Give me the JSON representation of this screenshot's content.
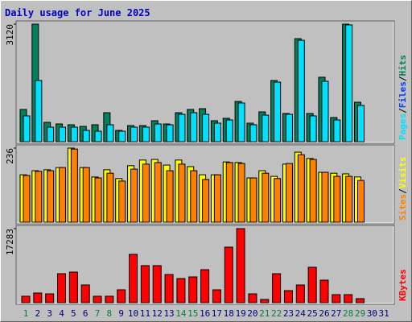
{
  "chart_data": [
    {
      "type": "bar",
      "title": "Daily usage for June 2025",
      "ylim": [
        0,
        3120
      ],
      "yticks": [
        3120
      ],
      "separator": "/",
      "series": [
        {
          "name": "Hits",
          "color": "#00805c",
          "values": [
            855,
            3120,
            513,
            470,
            449,
            406,
            449,
            769,
            300,
            427,
            427,
            556,
            470,
            769,
            855,
            876,
            556,
            620,
            1068,
            491,
            791,
            1624,
            748,
            2735,
            748,
            1710,
            641,
            3120,
            1047,
            0,
            0
          ]
        },
        {
          "name": "Files",
          "color": "#0040ff",
          "values": [
            null,
            null,
            null,
            null,
            null,
            null,
            null,
            null,
            null,
            null,
            null,
            null,
            null,
            null,
            null,
            null,
            null,
            null,
            null,
            null,
            null,
            null,
            null,
            null,
            null,
            null,
            null,
            null,
            null,
            null,
            null
          ]
        },
        {
          "name": "Pages",
          "color": "#00e0ff",
          "values": [
            684,
            1624,
            385,
            385,
            385,
            300,
            278,
            449,
            278,
            385,
            385,
            470,
            449,
            727,
            769,
            727,
            491,
            577,
            1026,
            449,
            705,
            1581,
            727,
            2692,
            684,
            1603,
            577,
            3100,
            962,
            0,
            0
          ]
        }
      ]
    },
    {
      "type": "bar",
      "ylim": [
        0,
        236
      ],
      "yticks": [
        236
      ],
      "separator": "/",
      "series": [
        {
          "name": "Visits",
          "color": "#ffff00",
          "values": [
            151,
            164,
            167,
            174,
            236,
            174,
            144,
            167,
            139,
            180,
            198,
            200,
            182,
            198,
            177,
            151,
            151,
            192,
            190,
            141,
            164,
            146,
            185,
            223,
            203,
            159,
            156,
            154,
            144,
            0,
            0
          ]
        },
        {
          "name": "Sites",
          "color": "#ff8000",
          "values": [
            149,
            162,
            164,
            174,
            233,
            174,
            141,
            156,
            131,
            169,
            185,
            190,
            164,
            185,
            164,
            136,
            151,
            190,
            187,
            141,
            156,
            139,
            187,
            215,
            200,
            159,
            146,
            146,
            133,
            0,
            0
          ]
        }
      ]
    },
    {
      "type": "bar",
      "ylim": [
        0,
        17283
      ],
      "yticks": [
        17283
      ],
      "categories": [
        "1",
        "2",
        "3",
        "4",
        "5",
        "6",
        "7",
        "8",
        "9",
        "10",
        "11",
        "12",
        "13",
        "14",
        "15",
        "16",
        "17",
        "18",
        "19",
        "20",
        "21",
        "22",
        "23",
        "24",
        "25",
        "26",
        "27",
        "28",
        "29",
        "30",
        "31"
      ],
      "category_colors": [
        "#008040",
        "#000080",
        "#000080",
        "#000080",
        "#000080",
        "#000080",
        "#008040",
        "#008040",
        "#000080",
        "#000080",
        "#000080",
        "#000080",
        "#000080",
        "#008040",
        "#008040",
        "#000080",
        "#000080",
        "#000080",
        "#000080",
        "#000080",
        "#008040",
        "#008040",
        "#000080",
        "#000080",
        "#000080",
        "#000080",
        "#000080",
        "#008040",
        "#008040",
        "#000080",
        "#000080"
      ],
      "series": [
        {
          "name": "KBytes",
          "color": "#ff0000",
          "values": [
            1503,
            2254,
            2066,
            6763,
            7139,
            4133,
            1503,
            1503,
            3006,
            11272,
            8642,
            8642,
            6575,
            5636,
            6012,
            7702,
            3006,
            12962,
            17283,
            2066,
            751,
            6763,
            2818,
            4133,
            8266,
            5260,
            1879,
            1879,
            939,
            0,
            0
          ]
        }
      ]
    }
  ]
}
